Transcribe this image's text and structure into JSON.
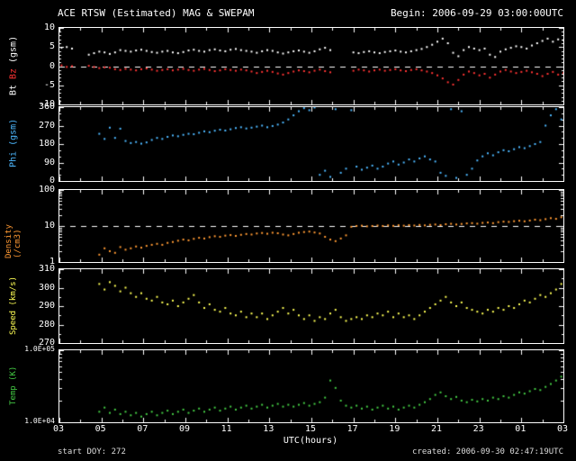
{
  "header": {
    "title": "ACE RTSW (Estimated) MAG & SWEPAM",
    "begin": "Begin: 2006-09-29 03:00:00UTC"
  },
  "footer": {
    "start_doy": "start DOY: 272",
    "created": "created: 2006-09-30 02:47:19UTC"
  },
  "x_axis": {
    "label": "UTC(hours)",
    "min": 3,
    "max": 27,
    "major_step": 2,
    "ticks": [
      "03",
      "05",
      "07",
      "09",
      "11",
      "13",
      "15",
      "17",
      "19",
      "21",
      "23",
      "01",
      "03"
    ]
  },
  "colors": {
    "background": "#000000",
    "axis": "#ffffff",
    "bt": "#ffffff",
    "bz": "#ff3333",
    "phi": "#4db8ff",
    "density": "#ff9933",
    "speed": "#ffff55",
    "temp": "#44cc44"
  },
  "chart_data": [
    {
      "type": "scatter",
      "name": "mag-bt-bz",
      "scale": "linear",
      "ymin": -10,
      "ymax": 10,
      "dashed_at": 0,
      "tick_size": "normal",
      "label_font": 10,
      "ylabel_parts": [
        {
          "text": "Bt",
          "color": "#ffffff"
        },
        {
          "text": "Bz",
          "color": "#ff3333"
        },
        {
          "text": "(gsm)",
          "color": "#ffffff"
        }
      ],
      "yticks": [
        {
          "v": 10,
          "label": "10"
        },
        {
          "v": 5,
          "label": "5"
        },
        {
          "v": 0,
          "label": "0"
        },
        {
          "v": -5,
          "label": "-5"
        },
        {
          "v": -10,
          "label": "-10"
        }
      ],
      "series": [
        {
          "name": "Bt",
          "color": "#ffffff",
          "segments": [
            {
              "x_start": 3.1,
              "x_step": 0.25,
              "values": [
                4.8,
                5.0,
                4.6
              ]
            },
            {
              "x_start": 4.4,
              "x_step": 0.25,
              "values": [
                3.0,
                3.4,
                3.8,
                3.6,
                3.2,
                3.6,
                4.2,
                4.0,
                3.8,
                4.1,
                4.3,
                4.0,
                3.7,
                3.5,
                3.8,
                4.0,
                3.6,
                3.4,
                3.7,
                4.1,
                4.3,
                4.0,
                3.8,
                4.2,
                4.4,
                4.1,
                3.9,
                4.3,
                4.5,
                4.2,
                4.0,
                3.8,
                3.5,
                3.9,
                4.2,
                4.0,
                3.6,
                3.3,
                3.6,
                3.9,
                4.1,
                3.8,
                3.5,
                3.9,
                4.4,
                4.8,
                4.2
              ]
            },
            {
              "x_start": 17.0,
              "x_step": 0.25,
              "values": [
                3.6,
                3.4,
                3.7,
                3.9,
                3.6,
                3.4,
                3.7,
                3.9,
                4.1,
                3.8,
                3.6,
                3.9,
                4.2,
                4.5,
                5.0,
                5.6,
                6.4,
                7.2,
                6.0,
                3.5,
                2.6,
                4.2,
                5.0,
                4.6,
                4.2,
                4.6,
                3.0,
                2.4,
                3.8,
                4.4,
                4.8,
                5.2,
                5.0,
                4.6,
                5.4,
                6.0,
                6.6,
                7.2,
                6.4,
                7.0,
                6.8
              ]
            }
          ]
        },
        {
          "name": "Bz",
          "color": "#ff3333",
          "segments": [
            {
              "x_start": 3.1,
              "x_step": 0.25,
              "values": [
                0.2,
                -0.2,
                0.0
              ]
            },
            {
              "x_start": 4.4,
              "x_step": 0.25,
              "values": [
                0.1,
                -0.2,
                -0.5,
                -0.3,
                -0.4,
                -0.8,
                -1.0,
                -0.7,
                -0.9,
                -1.1,
                -0.8,
                -0.6,
                -0.9,
                -1.2,
                -1.0,
                -0.8,
                -1.1,
                -0.9,
                -0.7,
                -1.0,
                -1.2,
                -0.9,
                -0.7,
                -1.0,
                -1.3,
                -1.1,
                -0.8,
                -1.0,
                -1.2,
                -0.9,
                -1.1,
                -1.4,
                -1.8,
                -1.5,
                -1.2,
                -1.5,
                -1.9,
                -2.2,
                -1.8,
                -1.4,
                -1.1,
                -1.3,
                -1.6,
                -1.2,
                -0.9,
                -1.3,
                -1.6
              ]
            },
            {
              "x_start": 17.0,
              "x_step": 0.25,
              "values": [
                -1.2,
                -0.9,
                -1.1,
                -1.4,
                -1.1,
                -0.9,
                -1.2,
                -1.0,
                -0.8,
                -1.1,
                -1.3,
                -1.0,
                -0.8,
                -1.1,
                -1.4,
                -1.8,
                -2.4,
                -3.2,
                -4.2,
                -4.8,
                -3.6,
                -2.2,
                -1.4,
                -1.8,
                -2.4,
                -2.0,
                -3.0,
                -2.2,
                -1.4,
                -1.0,
                -1.4,
                -1.8,
                -1.5,
                -1.2,
                -1.6,
                -2.0,
                -2.6,
                -2.0,
                -1.5,
                -2.2,
                -1.8
              ]
            }
          ]
        }
      ]
    },
    {
      "type": "scatter",
      "name": "phi",
      "scale": "linear",
      "ymin": 0,
      "ymax": 360,
      "dashed_at": null,
      "tick_size": "normal",
      "label_font": 10,
      "ylabel_parts": [
        {
          "text": "Phi (gsm)",
          "color": "#4db8ff"
        }
      ],
      "yticks": [
        {
          "v": 360,
          "label": "360"
        },
        {
          "v": 270,
          "label": "270"
        },
        {
          "v": 180,
          "label": "180"
        },
        {
          "v": 90,
          "label": "90"
        },
        {
          "v": 0,
          "label": "0"
        }
      ],
      "series": [
        {
          "name": "Phi",
          "color": "#4db8ff",
          "segments": [
            {
              "x_start": 4.9,
              "x_step": 0.25,
              "values": [
                230,
                205,
                260,
                210,
                255,
                195,
                185,
                190,
                182,
                188,
                200,
                210,
                205,
                215,
                222,
                218,
                225,
                230,
                228,
                235,
                242,
                238,
                245,
                250,
                246,
                252,
                258,
                262,
                256,
                260,
                265,
                270,
                262,
                268,
                275,
                285,
                300,
                320,
                340,
                355,
                345,
                358,
                30,
                50,
                20,
                350,
                40,
                60,
                345,
                70,
                55,
                65,
                75,
                60,
                70,
                85,
                95,
                80,
                90,
                105,
                95,
                110,
                120,
                105,
                95,
                40,
                25,
                350,
                15,
                340,
                30,
                60,
                100,
                120,
                135,
                125,
                140,
                150,
                145,
                155,
                165,
                160,
                170,
                180,
                190,
                270,
                320,
                350,
                300,
                340
              ]
            }
          ]
        }
      ]
    },
    {
      "type": "scatter",
      "name": "density",
      "scale": "log",
      "ymin": 1,
      "ymax": 100,
      "dashed_at": 10,
      "tick_size": "normal",
      "label_font": 9,
      "ylabel_parts": [
        {
          "text": "Density (/cm3)",
          "color": "#ff9933"
        }
      ],
      "yticks": [
        {
          "v": 100,
          "label": "100"
        },
        {
          "v": 10,
          "label": "10"
        },
        {
          "v": 1,
          "label": "1"
        }
      ],
      "series": [
        {
          "name": "Density",
          "color": "#ff9933",
          "segments": [
            {
              "x_start": 4.9,
              "x_step": 0.25,
              "values": [
                1.6,
                2.4,
                2.0,
                1.8,
                2.6,
                2.2,
                2.4,
                2.7,
                2.5,
                2.8,
                3.0,
                3.2,
                3.0,
                3.4,
                3.6,
                3.9,
                4.2,
                4.0,
                4.4,
                4.7,
                4.5,
                4.9,
                5.2,
                5.0,
                5.4,
                5.6,
                5.3,
                5.7,
                6.0,
                5.8,
                6.2,
                6.4,
                6.1,
                6.5,
                6.3,
                5.8,
                5.5,
                6.0,
                6.5,
                6.8,
                7.0,
                6.6,
                6.2,
                5.0,
                4.2,
                3.8,
                4.5,
                5.5,
                9.5,
                10.0,
                10.2,
                9.8,
                10.0,
                10.3,
                10.0,
                10.4,
                10.1,
                10.5,
                10.2,
                10.6,
                10.3,
                10.7,
                10.4,
                10.8,
                11.0,
                10.6,
                11.2,
                11.5,
                11.0,
                11.4,
                11.8,
                12.0,
                11.6,
                12.2,
                12.5,
                12.0,
                12.8,
                13.2,
                13.0,
                13.6,
                14.0,
                13.5,
                14.2,
                15.0,
                14.5,
                15.5,
                16.5,
                15.8,
                17.5,
                16.0
              ]
            }
          ]
        }
      ]
    },
    {
      "type": "scatter",
      "name": "speed",
      "scale": "linear",
      "ymin": 270,
      "ymax": 310,
      "dashed_at": null,
      "tick_size": "normal",
      "label_font": 9,
      "ylabel_parts": [
        {
          "text": "Speed (km/s)",
          "color": "#ffff55"
        }
      ],
      "yticks": [
        {
          "v": 310,
          "label": "310"
        },
        {
          "v": 300,
          "label": "300"
        },
        {
          "v": 290,
          "label": "290"
        },
        {
          "v": 280,
          "label": "280"
        },
        {
          "v": 270,
          "label": "270"
        }
      ],
      "series": [
        {
          "name": "Speed",
          "color": "#ffff55",
          "segments": [
            {
              "x_start": 4.9,
              "x_step": 0.25,
              "values": [
                302,
                299,
                303,
                301,
                298,
                300,
                297,
                295,
                297,
                294,
                293,
                295,
                292,
                291,
                293,
                290,
                292,
                294,
                296,
                292,
                289,
                291,
                288,
                287,
                289,
                286,
                285,
                287,
                284,
                286,
                284,
                286,
                283,
                285,
                287,
                289,
                286,
                288,
                285,
                283,
                285,
                282,
                284,
                283,
                286,
                288,
                284,
                282,
                283,
                284,
                283,
                285,
                284,
                286,
                285,
                287,
                284,
                286,
                284,
                285,
                283,
                285,
                287,
                289,
                291,
                293,
                295,
                292,
                290,
                292,
                289,
                288,
                287,
                286,
                288,
                287,
                289,
                288,
                290,
                289,
                291,
                293,
                292,
                294,
                296,
                295,
                297,
                299,
                302,
                304
              ]
            }
          ]
        }
      ]
    },
    {
      "type": "scatter",
      "name": "temp",
      "scale": "log",
      "ymin": 10000,
      "ymax": 100000,
      "dashed_at": null,
      "tick_size": "small",
      "label_font": 9,
      "ylabel_parts": [
        {
          "text": "Temp (K)",
          "color": "#44cc44"
        }
      ],
      "yticks": [
        {
          "v": 100000,
          "label": "1.0E+05"
        },
        {
          "v": 10000,
          "label": "1.0E+04"
        }
      ],
      "series": [
        {
          "name": "Temp",
          "color": "#44cc44",
          "segments": [
            {
              "x_start": 4.9,
              "x_step": 0.25,
              "values": [
                14000,
                16000,
                13500,
                15000,
                13000,
                14000,
                12500,
                13500,
                12000,
                13000,
                14000,
                12500,
                13500,
                14500,
                13000,
                14000,
                15000,
                13500,
                14500,
                15500,
                14000,
                15000,
                16000,
                14500,
                15500,
                16500,
                15000,
                16000,
                17000,
                15500,
                16500,
                17500,
                16000,
                17000,
                18000,
                16500,
                17500,
                16500,
                17500,
                18500,
                17000,
                18000,
                19000,
                22000,
                38000,
                30000,
                20000,
                17000,
                16000,
                17000,
                15500,
                16500,
                15000,
                16000,
                17000,
                15500,
                16500,
                15000,
                16000,
                17000,
                16000,
                17500,
                19000,
                21000,
                24000,
                26000,
                23000,
                21000,
                22500,
                20000,
                19000,
                20500,
                19500,
                21000,
                20000,
                22000,
                21000,
                23000,
                22000,
                24000,
                26000,
                25000,
                27000,
                29000,
                28000,
                31000,
                34000,
                38000,
                43000,
                47000
              ]
            }
          ]
        }
      ]
    }
  ]
}
